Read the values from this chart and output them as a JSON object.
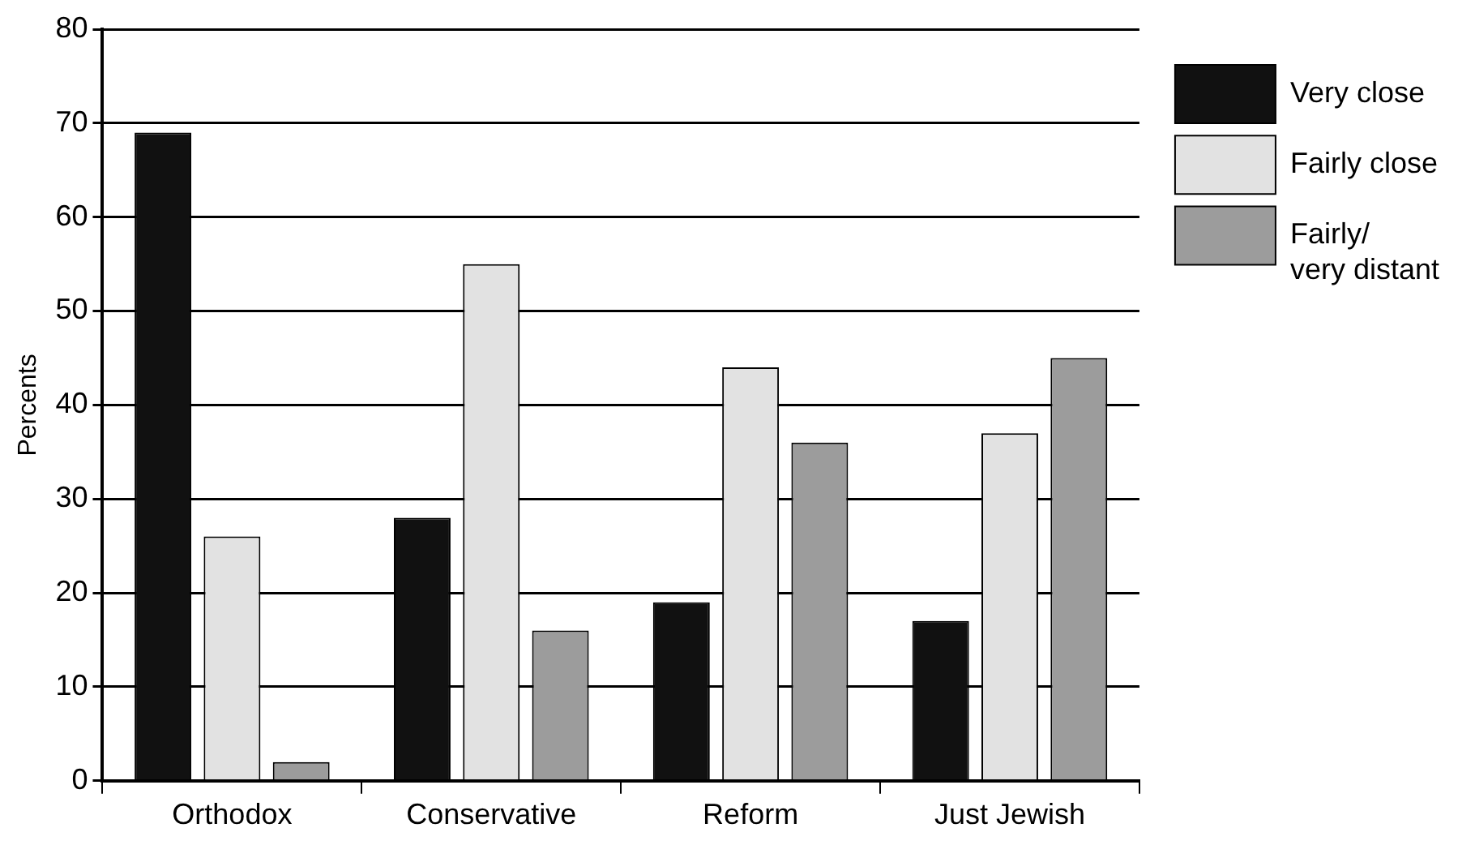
{
  "chart_data": {
    "type": "bar",
    "ylabel": "Percents",
    "categories": [
      "Orthodox",
      "Conservative",
      "Reform",
      "Just Jewish"
    ],
    "series": [
      {
        "name": "Very close",
        "color": "#111111",
        "values": [
          69,
          28,
          19,
          17
        ]
      },
      {
        "name": "Fairly close",
        "color": "#e2e2e2",
        "values": [
          26,
          55,
          44,
          37
        ]
      },
      {
        "name": "Fairly/\nvery distant",
        "color": "#9c9c9c",
        "values": [
          2,
          16,
          36,
          45
        ]
      }
    ],
    "ylim": [
      0,
      80
    ],
    "yticks": [
      0,
      10,
      20,
      30,
      40,
      50,
      60,
      70,
      80
    ],
    "grid": "y",
    "legend": "top right"
  }
}
